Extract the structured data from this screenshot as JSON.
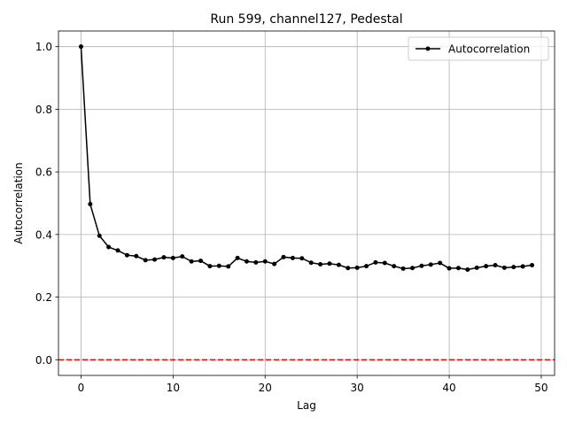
{
  "chart_data": {
    "type": "line",
    "title": "Run 599, channel127, Pedestal",
    "xlabel": "Lag",
    "ylabel": "Autocorrelation",
    "xlim": [
      -2.45,
      51.45
    ],
    "ylim": [
      -0.05,
      1.05
    ],
    "xticks": [
      0,
      10,
      20,
      30,
      40,
      50
    ],
    "xtick_labels": [
      "0",
      "10",
      "20",
      "30",
      "40",
      "50"
    ],
    "yticks": [
      0.0,
      0.2,
      0.4,
      0.6,
      0.8,
      1.0
    ],
    "ytick_labels": [
      "0.0",
      "0.2",
      "0.4",
      "0.6",
      "0.8",
      "1.0"
    ],
    "grid": true,
    "legend_position": "top-right",
    "series": [
      {
        "name": "Autocorrelation",
        "color": "#000000",
        "marker": "circle",
        "x": [
          0,
          1,
          2,
          3,
          4,
          5,
          6,
          7,
          8,
          9,
          10,
          11,
          12,
          13,
          14,
          15,
          16,
          17,
          18,
          19,
          20,
          21,
          22,
          23,
          24,
          25,
          26,
          27,
          28,
          29,
          30,
          31,
          32,
          33,
          34,
          35,
          36,
          37,
          38,
          39,
          40,
          41,
          42,
          43,
          44,
          45,
          46,
          47,
          48,
          49
        ],
        "values": [
          1.0,
          0.497,
          0.396,
          0.36,
          0.349,
          0.334,
          0.331,
          0.318,
          0.32,
          0.327,
          0.325,
          0.33,
          0.314,
          0.316,
          0.299,
          0.3,
          0.298,
          0.325,
          0.314,
          0.311,
          0.314,
          0.306,
          0.328,
          0.325,
          0.324,
          0.31,
          0.305,
          0.307,
          0.303,
          0.293,
          0.294,
          0.299,
          0.311,
          0.309,
          0.299,
          0.291,
          0.293,
          0.3,
          0.304,
          0.309,
          0.292,
          0.293,
          0.288,
          0.294,
          0.299,
          0.302,
          0.294,
          0.296,
          0.298,
          0.302
        ]
      }
    ],
    "reference_line": {
      "y": 0.0,
      "color": "#ff0000",
      "style": "dashed"
    }
  }
}
